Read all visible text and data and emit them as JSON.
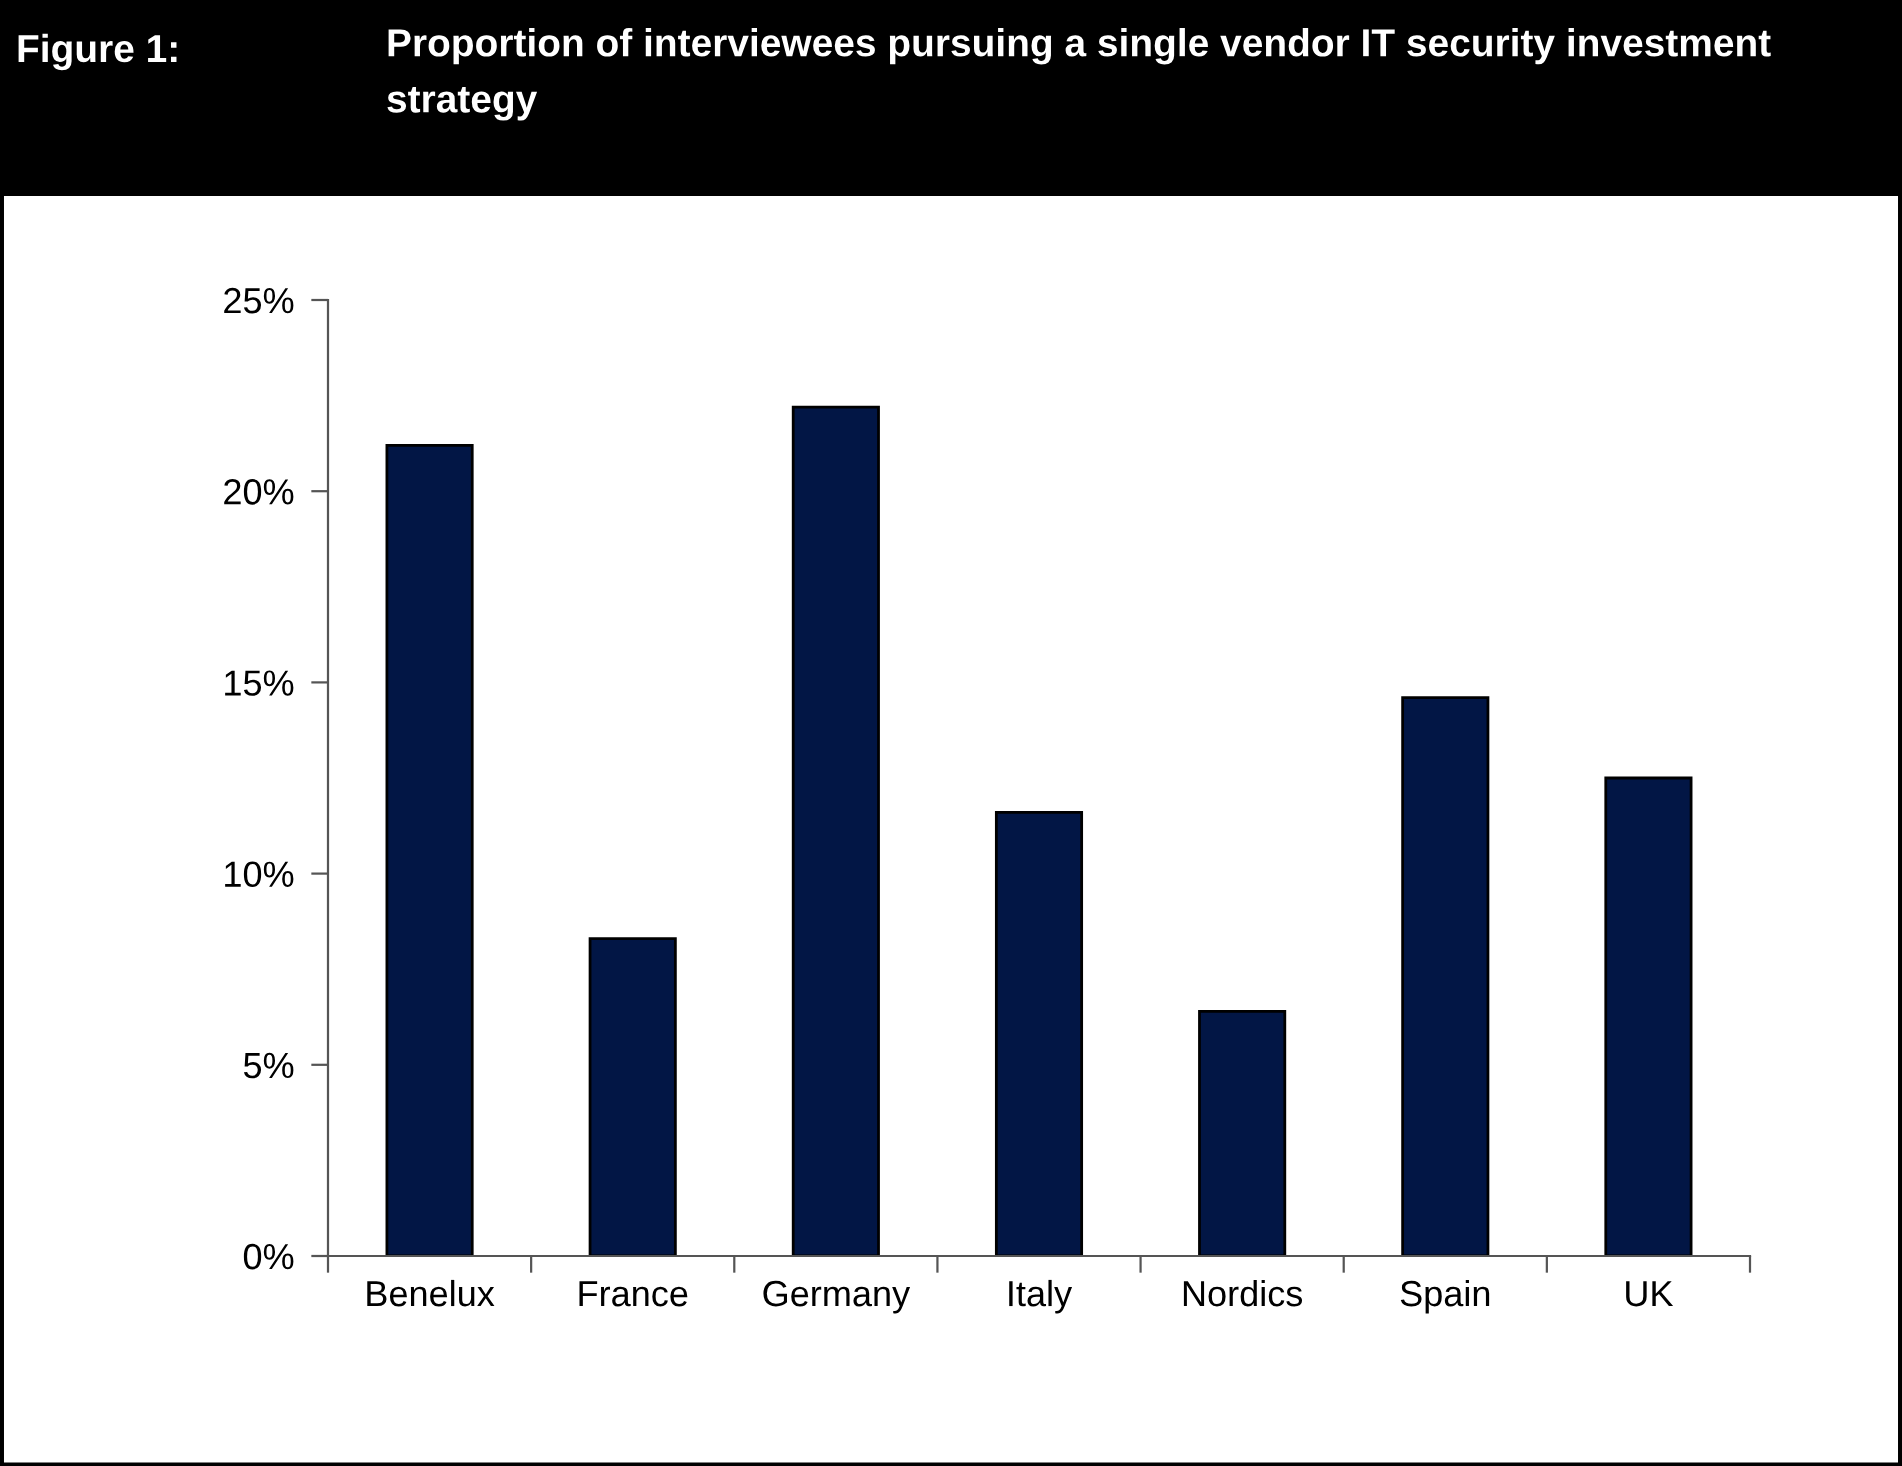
{
  "chart_data": {
    "type": "bar",
    "title": "Proportion of interviewees pursuing a single vendor IT security investment strategy",
    "annotations": [
      "Figure 1:"
    ],
    "categories": [
      "Benelux",
      "France",
      "Germany",
      "Italy",
      "Nordics",
      "Spain",
      "UK"
    ],
    "values": [
      21.2,
      8.3,
      22.2,
      11.6,
      6.4,
      14.6,
      12.5
    ],
    "color": "#021645",
    "ylim": [
      0,
      25
    ],
    "yticks": [
      {
        "value": 0,
        "label": "0%"
      },
      {
        "value": 5,
        "label": "5%"
      },
      {
        "value": 10,
        "label": "10%"
      },
      {
        "value": 15,
        "label": "15%"
      },
      {
        "value": 20,
        "label": "20%"
      },
      {
        "value": 25,
        "label": "25%"
      }
    ],
    "grid": false,
    "legend": false
  }
}
